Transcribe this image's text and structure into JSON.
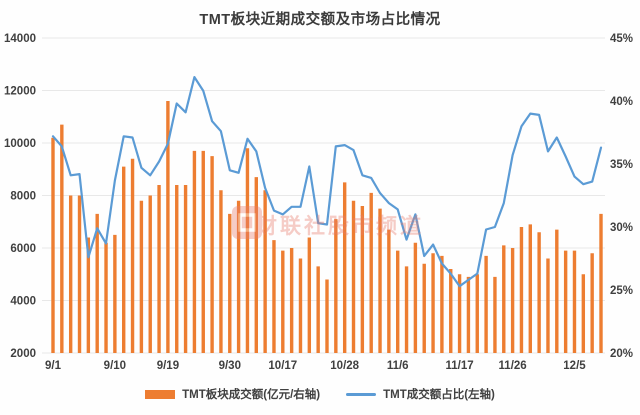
{
  "title": "TMT板块近期成交额及市场占比情况",
  "legend": {
    "bar_label": "TMT板块成交额(亿元/右轴)",
    "line_label": "TMT成交额占比(左轴)"
  },
  "watermark": {
    "text": "财联社股市频道"
  },
  "colors": {
    "bar": "#ED7D31",
    "line": "#5B9BD5",
    "grid": "#e8e8e8",
    "axis_text": "#404040",
    "title_text": "#3b3b3b",
    "watermark": "#E87C6E",
    "background": "#fefefe"
  },
  "chart_data": {
    "type": "bar+line combo",
    "title": "TMT板块近期成交额及市场占比情况",
    "x_tick_labels": [
      "9/1",
      "9/10",
      "9/19",
      "9/30",
      "10/17",
      "10/28",
      "11/6",
      "11/17",
      "11/26",
      "12/5"
    ],
    "x_tick_indices": [
      0,
      7,
      13,
      20,
      26,
      33,
      39,
      46,
      52,
      59
    ],
    "left_axis": {
      "min": 2000,
      "max": 14000,
      "ticks": [
        14000,
        12000,
        10000,
        8000,
        6000,
        4000,
        2000
      ]
    },
    "right_axis": {
      "min": 20,
      "max": 45,
      "ticks": [
        45,
        40,
        35,
        30,
        25,
        20
      ],
      "suffix": "%"
    },
    "grid": "horizontal-only",
    "legend_position": "bottom-center",
    "series": [
      {
        "name": "TMT板块成交额(亿元/右轴)",
        "type": "bar",
        "scale": "left-axis-values",
        "values": [
          10200,
          10700,
          8000,
          8000,
          6400,
          7300,
          6200,
          6500,
          9100,
          9400,
          7800,
          8000,
          8400,
          11600,
          8400,
          8400,
          9700,
          9700,
          9500,
          8200,
          7300,
          7800,
          9800,
          8700,
          8200,
          6300,
          5900,
          6000,
          5600,
          6400,
          5300,
          4800,
          7100,
          8500,
          7800,
          7600,
          8100,
          7500,
          6700,
          5900,
          5300,
          6200,
          5400,
          5800,
          5700,
          5200,
          5000,
          4900,
          5000,
          5700,
          4900,
          6100,
          6000,
          6800,
          6900,
          6600,
          5600,
          6700,
          5900,
          5900,
          5000,
          5800,
          7300
        ]
      },
      {
        "name": "TMT成交额占比(左轴)",
        "type": "line",
        "scale": "right-axis-percent",
        "values": [
          37.2,
          36.4,
          34.1,
          34.2,
          27.6,
          29.9,
          28.7,
          33.7,
          37.2,
          37.1,
          34.7,
          34.1,
          35.2,
          36.6,
          39.8,
          39.1,
          41.9,
          40.8,
          38.4,
          37.6,
          34.5,
          34.3,
          37.0,
          36.0,
          33.1,
          31.3,
          31.0,
          31.6,
          31.6,
          34.8,
          30.3,
          30.2,
          36.4,
          36.5,
          36.1,
          34.1,
          33.9,
          32.7,
          31.9,
          31.4,
          29.0,
          31.0,
          27.7,
          28.6,
          27.1,
          26.3,
          25.3,
          25.8,
          26.3,
          29.8,
          30.0,
          31.9,
          35.7,
          38.0,
          39.0,
          38.9,
          36.0,
          37.1,
          35.6,
          34.0,
          33.4,
          33.6,
          36.3
        ]
      }
    ]
  }
}
